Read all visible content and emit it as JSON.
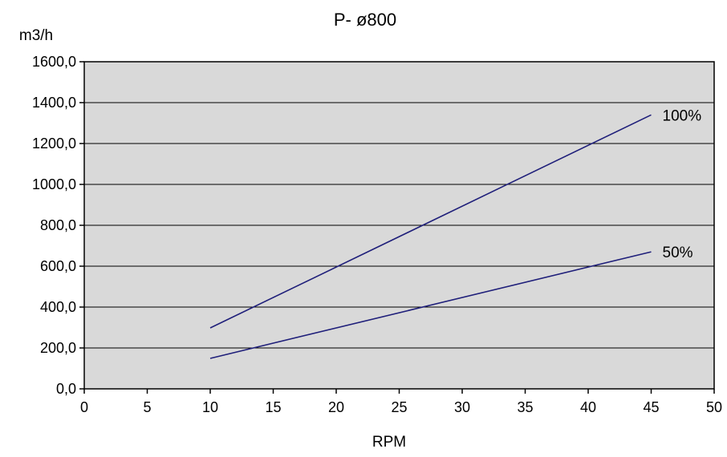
{
  "chart_data": {
    "type": "line",
    "title": "P- ø800",
    "xlabel": "RPM",
    "ylabel": "m3/h",
    "xlim": [
      0,
      50
    ],
    "ylim": [
      0,
      1600
    ],
    "x_ticks": [
      0,
      5,
      10,
      15,
      20,
      25,
      30,
      35,
      40,
      45,
      50
    ],
    "y_ticks": [
      0,
      200,
      400,
      600,
      800,
      1000,
      1200,
      1400,
      1600
    ],
    "y_tick_labels": [
      "0,0",
      "200,0",
      "400,0",
      "600,0",
      "800,0",
      "1000,0",
      "1200,0",
      "1400,0",
      "1600,0"
    ],
    "grid": "horizontal",
    "plot_background": "#d9d9d9",
    "series": [
      {
        "name": "100%",
        "color": "#1f1f7a",
        "x": [
          10,
          45
        ],
        "y": [
          298,
          1340
        ]
      },
      {
        "name": "50%",
        "color": "#1f1f7a",
        "x": [
          10,
          45
        ],
        "y": [
          149,
          670
        ]
      }
    ]
  }
}
